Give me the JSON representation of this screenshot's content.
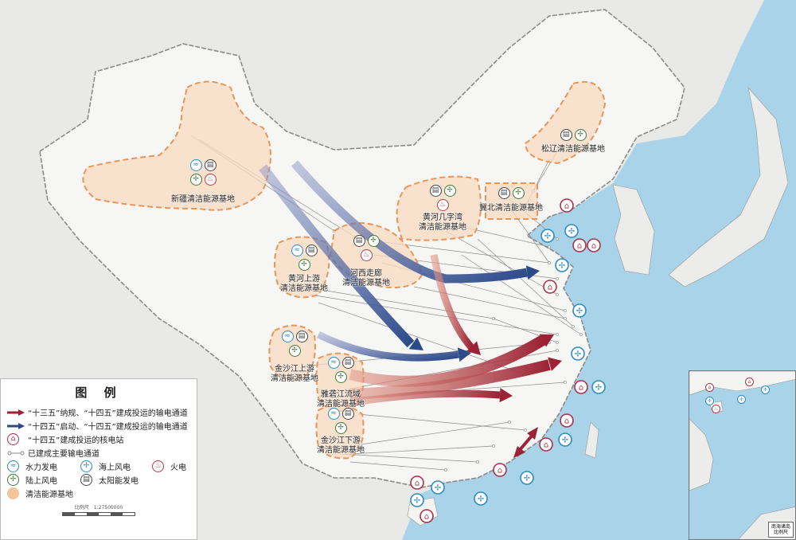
{
  "legend": {
    "title": "图 例",
    "items": [
      {
        "icon": "red-arrow",
        "color": "#9b2335",
        "label": "“十三五”纳规、“十四五”建成投运的输电通道"
      },
      {
        "icon": "blue-arrow",
        "color": "#2c4a8a",
        "label": "“十四五”启动、“十四五”建成投运的输电通道"
      },
      {
        "icon": "nuclear-icon",
        "color": "#a8324a",
        "label": "“十四五”建成投运的核电站"
      },
      {
        "icon": "transmission-line",
        "color": "#888888",
        "label": "已建成主要输电通道"
      }
    ],
    "types": [
      {
        "icon": "hydro-icon",
        "label": "水力发电"
      },
      {
        "icon": "offshore-wind-icon",
        "label": "海上风电"
      },
      {
        "icon": "fire-icon",
        "label": "火电"
      },
      {
        "icon": "onshore-wind-icon",
        "label": "陆上风电"
      },
      {
        "icon": "solar-icon",
        "label": "太阳能发电"
      },
      {
        "icon": "clean-energy-base",
        "color": "#f5c59a",
        "label": "清洁能源基地"
      }
    ],
    "scale_label": "比例尺　1:27500000"
  },
  "bases": [
    {
      "name": "新疆清洁能源基地",
      "types": [
        "hydro",
        "solar",
        "wind",
        "fire"
      ]
    },
    {
      "name": "河西走廊清洁能源基地",
      "types": [
        "solar",
        "wind",
        "fire"
      ]
    },
    {
      "name": "黄河上游清洁能源基地",
      "types": [
        "hydro",
        "solar",
        "wind"
      ]
    },
    {
      "name": "黄河几字湾清洁能源基地",
      "types": [
        "solar",
        "wind",
        "fire"
      ]
    },
    {
      "name": "冀北清洁能源基地",
      "types": [
        "solar",
        "wind"
      ]
    },
    {
      "name": "松辽清洁能源基地",
      "types": [
        "solar",
        "wind"
      ]
    },
    {
      "name": "金沙江上游清洁能源基地",
      "types": [
        "hydro",
        "solar",
        "wind"
      ]
    },
    {
      "name": "雅砻江流域清洁能源基地",
      "types": [
        "hydro",
        "solar",
        "wind"
      ]
    },
    {
      "name": "金沙江下游清洁能源基地",
      "types": [
        "hydro",
        "solar",
        "wind"
      ]
    }
  ],
  "inset": {
    "title": "南海诸岛",
    "scale": "比例尺"
  },
  "colors": {
    "sea": "#a9d3e8",
    "land": "#f4f4f2",
    "base_fill": "#f8d9c0",
    "base_border": "#e8955a",
    "red_channel": "#9b2335",
    "blue_channel": "#2c4a8a"
  }
}
